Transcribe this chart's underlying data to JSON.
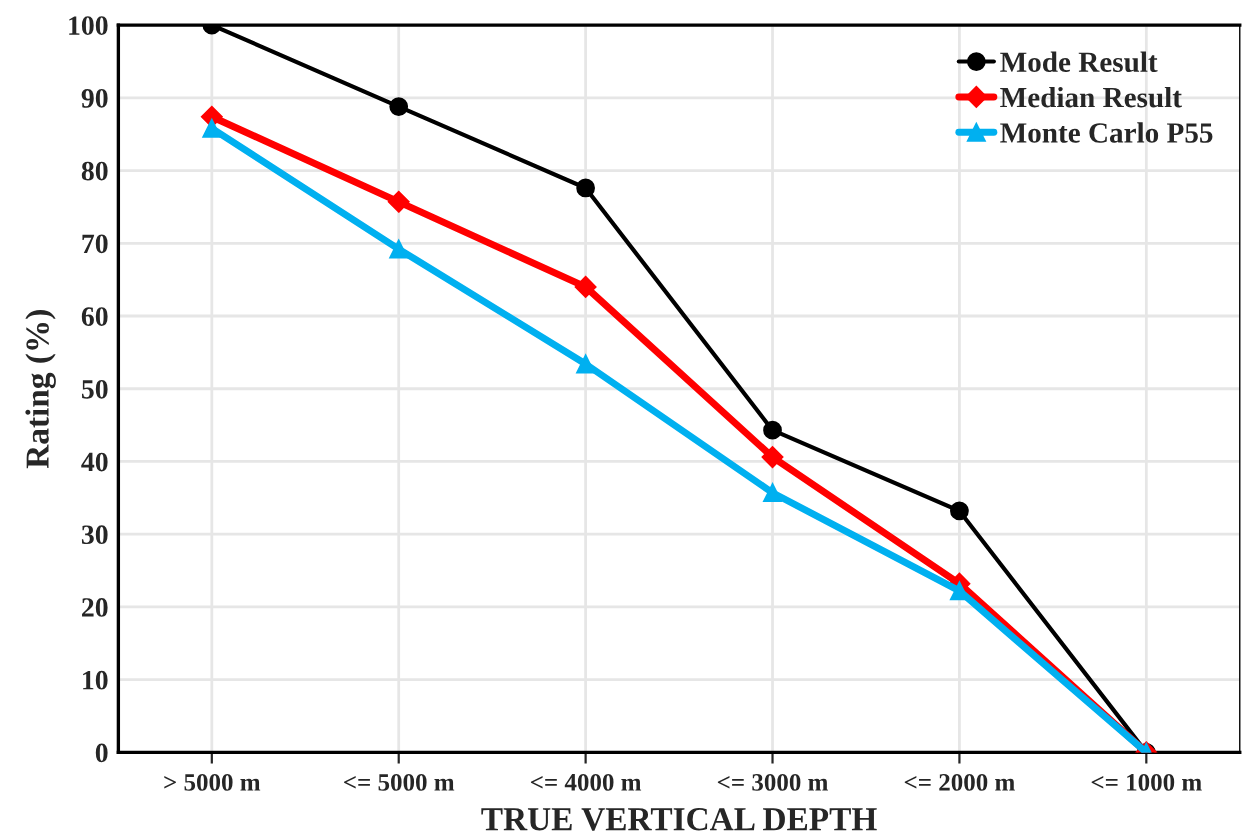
{
  "chart_data": {
    "type": "line",
    "xlabel": "TRUE VERTICAL DEPTH",
    "ylabel": "Rating (%)",
    "categories": [
      "> 5000 m",
      "<= 5000 m",
      "<= 4000 m",
      "<= 3000 m",
      "<= 2000 m",
      "<= 1000 m"
    ],
    "series": [
      {
        "name": "Mode Result",
        "color": "#000000",
        "marker": "circle",
        "values": [
          100,
          88.8,
          77.6,
          44.3,
          33.2,
          0
        ]
      },
      {
        "name": "Median Result",
        "color": "#ff0000",
        "marker": "diamond",
        "values": [
          87.4,
          75.7,
          64.0,
          40.6,
          23.2,
          0
        ]
      },
      {
        "name": "Monte Carlo P55",
        "color": "#00b0f0",
        "marker": "triangle",
        "values": [
          85.8,
          69.2,
          53.4,
          35.7,
          22.2,
          0
        ]
      }
    ],
    "ylim": [
      0,
      100
    ],
    "yticks": [
      0,
      10,
      20,
      30,
      40,
      50,
      60,
      70,
      80,
      90,
      100
    ],
    "grid": true,
    "legend": "top right"
  }
}
